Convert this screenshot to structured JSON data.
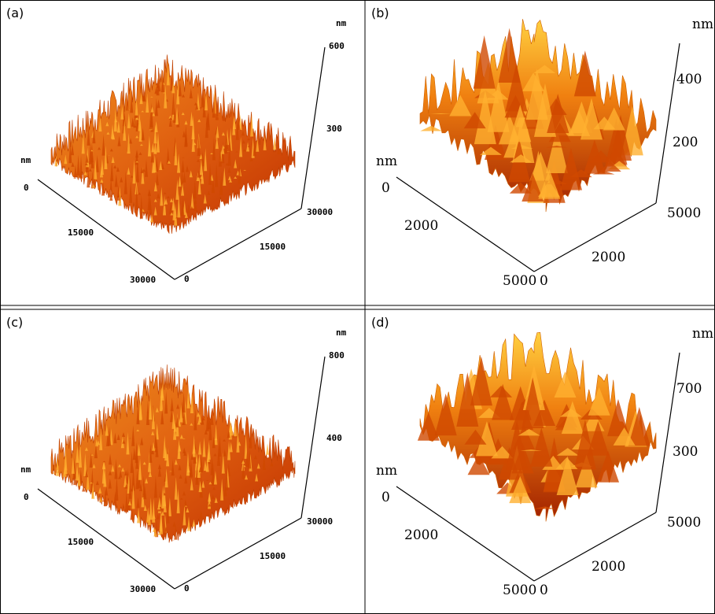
{
  "panels": [
    {
      "label": "(a)",
      "z_unit": "nm",
      "z_ticks": [
        "600",
        "300"
      ],
      "left_unit": "nm",
      "y_ticks": [
        "0",
        "15000",
        "30000"
      ],
      "x_ticks": [
        "0",
        "15000",
        "30000"
      ]
    },
    {
      "label": "(b)",
      "z_unit": "nm",
      "z_ticks": [
        "400",
        "200"
      ],
      "left_unit": "nm",
      "y_ticks": [
        "0",
        "2000",
        "5000"
      ],
      "x_ticks": [
        "0",
        "2000",
        "5000"
      ]
    },
    {
      "label": "(c)",
      "z_unit": "nm",
      "z_ticks": [
        "800",
        "400"
      ],
      "left_unit": "nm",
      "y_ticks": [
        "0",
        "15000",
        "30000"
      ],
      "x_ticks": [
        "0",
        "15000",
        "30000"
      ]
    },
    {
      "label": "(d)",
      "z_unit": "nm",
      "z_ticks": [
        "700",
        "300"
      ],
      "left_unit": "nm",
      "y_ticks": [
        "0",
        "2000",
        "5000"
      ],
      "x_ticks": [
        "0",
        "2000",
        "5000"
      ]
    }
  ]
}
